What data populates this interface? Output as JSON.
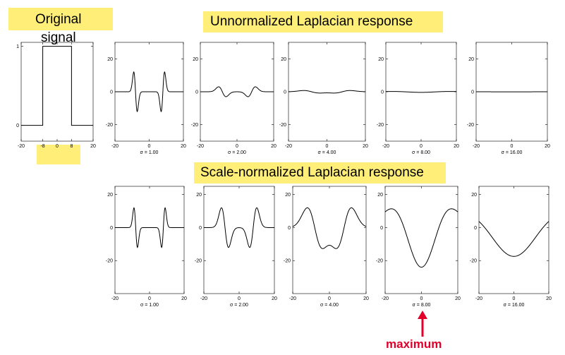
{
  "labels": {
    "original_line1": "Original",
    "original_line2": "signal",
    "unnormalized_title": "Unnormalized Laplacian response",
    "normalized_title": "Scale-normalized Laplacian response",
    "maximum": "maximum"
  },
  "colors": {
    "highlight": "#ffef78",
    "maximum_text": "#e0002a",
    "arrow": "#e0002a",
    "curve": "#000000"
  },
  "chart_data": [
    {
      "id": "original-signal",
      "type": "line",
      "x": [
        -20,
        -8,
        -8,
        8,
        8,
        20
      ],
      "values": [
        0,
        0,
        1,
        1,
        0,
        0
      ],
      "xlim": [
        -20,
        20
      ],
      "ylim": [
        -0.2,
        1.05
      ],
      "xticks": [
        -20,
        -8,
        0,
        8,
        20
      ],
      "yticks": [
        0,
        1
      ],
      "caption": ""
    },
    {
      "id": "unnorm-1",
      "group": "unnormalized",
      "type": "line",
      "func": "log",
      "sigma": 1,
      "xlim": [
        -20,
        20
      ],
      "ylim": [
        -30,
        30
      ],
      "xticks": [
        -20,
        0,
        20
      ],
      "yticks": [
        -20,
        0,
        20
      ],
      "caption": "σ = 1.00"
    },
    {
      "id": "unnorm-2",
      "group": "unnormalized",
      "type": "line",
      "func": "log",
      "sigma": 2,
      "xlim": [
        -20,
        20
      ],
      "ylim": [
        -30,
        30
      ],
      "xticks": [
        -20,
        0,
        20
      ],
      "yticks": [
        -20,
        0,
        20
      ],
      "caption": "σ = 2.00"
    },
    {
      "id": "unnorm-4",
      "group": "unnormalized",
      "type": "line",
      "func": "log",
      "sigma": 4,
      "xlim": [
        -20,
        20
      ],
      "ylim": [
        -30,
        30
      ],
      "xticks": [
        -20,
        0,
        20
      ],
      "yticks": [
        -20,
        0,
        20
      ],
      "caption": "σ = 4.00"
    },
    {
      "id": "unnorm-8",
      "group": "unnormalized",
      "type": "line",
      "func": "log",
      "sigma": 8,
      "xlim": [
        -20,
        20
      ],
      "ylim": [
        -30,
        30
      ],
      "xticks": [
        -20,
        0,
        20
      ],
      "yticks": [
        -20,
        0,
        20
      ],
      "caption": "σ = 8.00"
    },
    {
      "id": "unnorm-16",
      "group": "unnormalized",
      "type": "line",
      "func": "log",
      "sigma": 16,
      "xlim": [
        -20,
        20
      ],
      "ylim": [
        -30,
        30
      ],
      "xticks": [
        -20,
        0,
        20
      ],
      "yticks": [
        -20,
        0,
        20
      ],
      "caption": "σ = 16.00"
    },
    {
      "id": "norm-1",
      "group": "normalized",
      "type": "line",
      "func": "log_normalized",
      "sigma": 1,
      "xlim": [
        -20,
        20
      ],
      "ylim": [
        -40,
        25
      ],
      "xticks": [
        -20,
        0,
        20
      ],
      "yticks": [
        -20,
        0,
        20
      ],
      "caption": "σ = 1.00"
    },
    {
      "id": "norm-2",
      "group": "normalized",
      "type": "line",
      "func": "log_normalized",
      "sigma": 2,
      "xlim": [
        -20,
        20
      ],
      "ylim": [
        -40,
        25
      ],
      "xticks": [
        -20,
        0,
        20
      ],
      "yticks": [
        -20,
        0,
        20
      ],
      "caption": "σ = 2.00"
    },
    {
      "id": "norm-4",
      "group": "normalized",
      "type": "line",
      "func": "log_normalized",
      "sigma": 4,
      "xlim": [
        -20,
        20
      ],
      "ylim": [
        -40,
        25
      ],
      "xticks": [
        -20,
        0,
        20
      ],
      "yticks": [
        -20,
        0,
        20
      ],
      "caption": "σ = 4.00"
    },
    {
      "id": "norm-8",
      "group": "normalized",
      "type": "line",
      "func": "log_normalized",
      "sigma": 8,
      "xlim": [
        -20,
        20
      ],
      "ylim": [
        -40,
        25
      ],
      "xticks": [
        -20,
        0,
        20
      ],
      "yticks": [
        -20,
        0,
        20
      ],
      "caption": "σ = 8.00"
    },
    {
      "id": "norm-16",
      "group": "normalized",
      "type": "line",
      "func": "log_normalized",
      "sigma": 16,
      "xlim": [
        -20,
        20
      ],
      "ylim": [
        -40,
        25
      ],
      "xticks": [
        -20,
        0,
        20
      ],
      "yticks": [
        -20,
        0,
        20
      ],
      "caption": "σ = 16.00"
    }
  ]
}
